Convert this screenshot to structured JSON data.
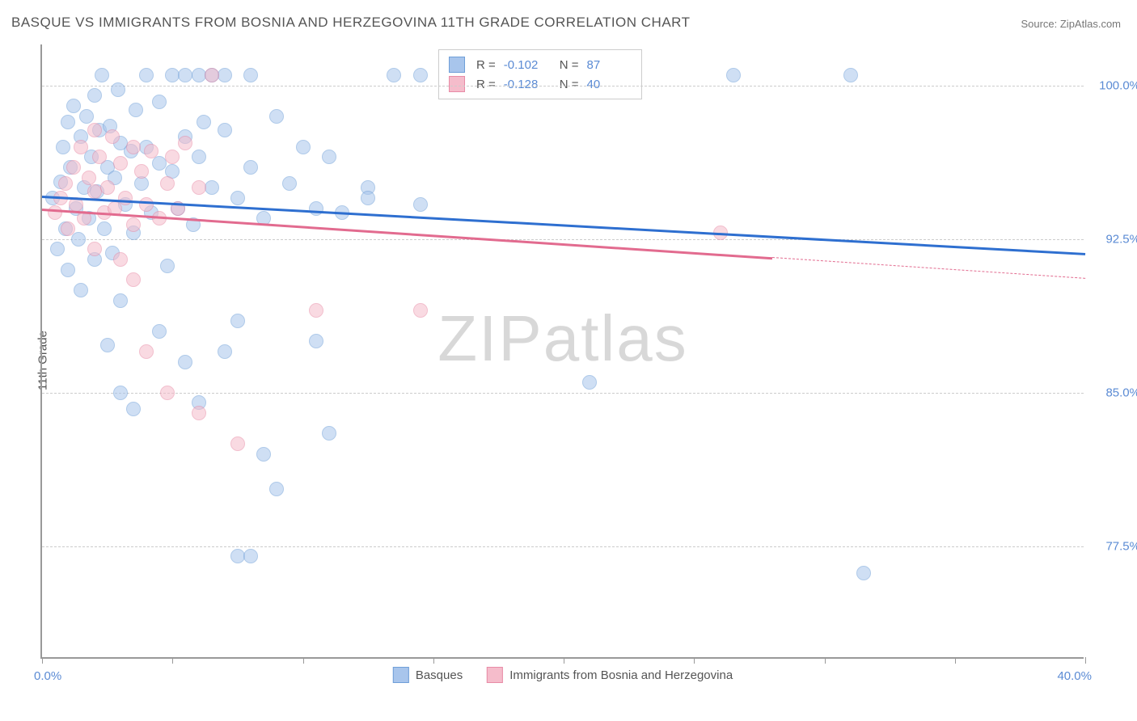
{
  "title": "BASQUE VS IMMIGRANTS FROM BOSNIA AND HERZEGOVINA 11TH GRADE CORRELATION CHART",
  "source": "Source: ZipAtlas.com",
  "y_axis_title": "11th Grade",
  "watermark": "ZIPatlas",
  "chart": {
    "type": "scatter",
    "background_color": "#ffffff",
    "grid_color": "#cccccc",
    "axis_color": "#999999",
    "label_color": "#5b8bd4",
    "text_color": "#555555",
    "xlim": [
      0,
      40
    ],
    "ylim": [
      72,
      102
    ],
    "x_ticks": [
      0,
      5,
      10,
      15,
      20,
      25,
      30,
      35,
      40
    ],
    "x_tick_label_left": "0.0%",
    "x_tick_label_right": "40.0%",
    "y_ticks": [
      {
        "value": 100,
        "label": "100.0%"
      },
      {
        "value": 92.5,
        "label": "92.5%"
      },
      {
        "value": 85,
        "label": "85.0%"
      },
      {
        "value": 77.5,
        "label": "77.5%"
      }
    ],
    "marker_radius": 9,
    "marker_opacity": 0.55,
    "series": [
      {
        "name": "Basques",
        "color_fill": "#a8c5ec",
        "color_stroke": "#6f9fd8",
        "swatch_fill": "#a8c5ec",
        "swatch_stroke": "#6f9fd8",
        "R": "-0.102",
        "N": "87",
        "trend": {
          "color": "#2e6fd0",
          "y_start": 94.6,
          "y_end": 91.8,
          "x_start": 0,
          "x_end": 40,
          "dashed_from": null
        },
        "points": [
          [
            0.4,
            94.5
          ],
          [
            0.6,
            92.0
          ],
          [
            0.7,
            95.3
          ],
          [
            0.8,
            97.0
          ],
          [
            0.9,
            93.0
          ],
          [
            1.0,
            98.2
          ],
          [
            1.0,
            91.0
          ],
          [
            1.1,
            96.0
          ],
          [
            1.2,
            99.0
          ],
          [
            1.3,
            94.0
          ],
          [
            1.4,
            92.5
          ],
          [
            1.5,
            97.5
          ],
          [
            1.5,
            90.0
          ],
          [
            1.6,
            95.0
          ],
          [
            1.7,
            98.5
          ],
          [
            1.8,
            93.5
          ],
          [
            1.9,
            96.5
          ],
          [
            2.0,
            99.5
          ],
          [
            2.0,
            91.5
          ],
          [
            2.1,
            94.8
          ],
          [
            2.2,
            97.8
          ],
          [
            2.3,
            100.5
          ],
          [
            2.4,
            93.0
          ],
          [
            2.5,
            96.0
          ],
          [
            2.6,
            98.0
          ],
          [
            2.7,
            91.8
          ],
          [
            2.8,
            95.5
          ],
          [
            2.9,
            99.8
          ],
          [
            3.0,
            97.2
          ],
          [
            3.0,
            89.5
          ],
          [
            3.2,
            94.2
          ],
          [
            3.4,
            96.8
          ],
          [
            3.5,
            92.8
          ],
          [
            3.6,
            98.8
          ],
          [
            3.8,
            95.2
          ],
          [
            4.0,
            97.0
          ],
          [
            4.0,
            100.5
          ],
          [
            4.2,
            93.8
          ],
          [
            4.5,
            96.2
          ],
          [
            4.5,
            99.2
          ],
          [
            4.8,
            91.2
          ],
          [
            5.0,
            95.8
          ],
          [
            5.0,
            100.5
          ],
          [
            5.2,
            94.0
          ],
          [
            5.5,
            97.5
          ],
          [
            5.5,
            100.5
          ],
          [
            5.8,
            93.2
          ],
          [
            6.0,
            96.5
          ],
          [
            6.0,
            100.5
          ],
          [
            6.2,
            98.2
          ],
          [
            6.5,
            95.0
          ],
          [
            6.5,
            100.5
          ],
          [
            7.0,
            97.8
          ],
          [
            7.0,
            100.5
          ],
          [
            7.5,
            94.5
          ],
          [
            7.5,
            88.5
          ],
          [
            8.0,
            96.0
          ],
          [
            8.0,
            100.5
          ],
          [
            8.5,
            93.5
          ],
          [
            9.0,
            98.5
          ],
          [
            9.5,
            95.2
          ],
          [
            10.0,
            97.0
          ],
          [
            10.5,
            94.0
          ],
          [
            11.0,
            96.5
          ],
          [
            11.5,
            93.8
          ],
          [
            12.5,
            95.0
          ],
          [
            13.5,
            100.5
          ],
          [
            14.5,
            94.2
          ],
          [
            2.5,
            87.3
          ],
          [
            3.0,
            85.0
          ],
          [
            3.5,
            84.2
          ],
          [
            4.5,
            88.0
          ],
          [
            5.5,
            86.5
          ],
          [
            6.0,
            84.5
          ],
          [
            7.0,
            87.0
          ],
          [
            7.5,
            77.0
          ],
          [
            8.0,
            77.0
          ],
          [
            8.5,
            82.0
          ],
          [
            9.0,
            80.3
          ],
          [
            10.5,
            87.5
          ],
          [
            11.0,
            83.0
          ],
          [
            12.5,
            94.5
          ],
          [
            21.0,
            85.5
          ],
          [
            26.5,
            100.5
          ],
          [
            31.0,
            100.5
          ],
          [
            31.5,
            76.2
          ],
          [
            14.5,
            100.5
          ]
        ]
      },
      {
        "name": "Immigrants from Bosnia and Herzegovina",
        "color_fill": "#f5bccb",
        "color_stroke": "#e88ba6",
        "swatch_fill": "#f5bccb",
        "swatch_stroke": "#e88ba6",
        "R": "-0.128",
        "N": "40",
        "trend": {
          "color": "#e26b8f",
          "y_start": 94.0,
          "y_end": 90.6,
          "x_start": 0,
          "x_end": 40,
          "dashed_from": 28
        },
        "points": [
          [
            0.5,
            93.8
          ],
          [
            0.7,
            94.5
          ],
          [
            0.9,
            95.2
          ],
          [
            1.0,
            93.0
          ],
          [
            1.2,
            96.0
          ],
          [
            1.3,
            94.2
          ],
          [
            1.5,
            97.0
          ],
          [
            1.6,
            93.5
          ],
          [
            1.8,
            95.5
          ],
          [
            2.0,
            94.8
          ],
          [
            2.0,
            92.0
          ],
          [
            2.2,
            96.5
          ],
          [
            2.4,
            93.8
          ],
          [
            2.5,
            95.0
          ],
          [
            2.7,
            97.5
          ],
          [
            2.8,
            94.0
          ],
          [
            3.0,
            96.2
          ],
          [
            3.0,
            91.5
          ],
          [
            3.2,
            94.5
          ],
          [
            3.5,
            97.0
          ],
          [
            3.5,
            93.2
          ],
          [
            3.8,
            95.8
          ],
          [
            4.0,
            94.2
          ],
          [
            4.2,
            96.8
          ],
          [
            4.5,
            93.5
          ],
          [
            4.8,
            95.2
          ],
          [
            5.0,
            96.5
          ],
          [
            5.2,
            94.0
          ],
          [
            5.5,
            97.2
          ],
          [
            6.0,
            95.0
          ],
          [
            6.5,
            100.5
          ],
          [
            4.0,
            87.0
          ],
          [
            4.8,
            85.0
          ],
          [
            6.0,
            84.0
          ],
          [
            7.5,
            82.5
          ],
          [
            10.5,
            89.0
          ],
          [
            14.5,
            89.0
          ],
          [
            26.0,
            92.8
          ],
          [
            3.5,
            90.5
          ],
          [
            2.0,
            97.8
          ]
        ]
      }
    ],
    "bottom_legend": [
      {
        "label": "Basques",
        "fill": "#a8c5ec",
        "stroke": "#6f9fd8"
      },
      {
        "label": "Immigrants from Bosnia and Herzegovina",
        "fill": "#f5bccb",
        "stroke": "#e88ba6"
      }
    ]
  }
}
